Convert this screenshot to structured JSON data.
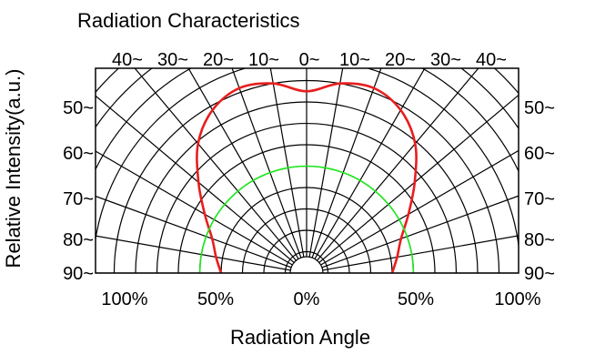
{
  "chart_data": {
    "type": "polar",
    "title": "Radiation Characteristics",
    "xlabel": "Radiation Angle",
    "ylabel": "Relative Intensity(a.u.)",
    "top_tick_labels": [
      "40~",
      "30~",
      "20~",
      "10~",
      "0~",
      "10~",
      "20~",
      "30~",
      "40~"
    ],
    "left_tick_labels": [
      "50~",
      "60~",
      "70~",
      "80~",
      "90~"
    ],
    "right_tick_labels": [
      "50~",
      "60~",
      "70~",
      "80~",
      "90~"
    ],
    "bottom_tick_labels": [
      "100%",
      "50%",
      "0%",
      "50%",
      "100%"
    ],
    "angle_step_deg": 10,
    "angle_range_deg": [
      -90,
      90
    ],
    "radial_range_percent": [
      0,
      100
    ],
    "radial_grid_step_percent": 10,
    "grid": true,
    "series": [
      {
        "color": "#e81e1e",
        "angles_deg": [
          -90,
          -80,
          -70,
          -60,
          -50,
          -40,
          -30,
          -20,
          -10,
          0,
          10,
          20,
          30,
          40,
          50,
          60,
          70,
          80,
          90
        ],
        "values_percent": [
          40,
          43,
          47,
          55,
          66,
          79,
          88,
          92,
          90,
          85,
          90,
          92,
          88,
          79,
          66,
          55,
          47,
          43,
          40
        ]
      },
      {
        "color": "#1ee81e",
        "angles_deg": [
          -90,
          -80,
          -70,
          -60,
          -50,
          -40,
          -30,
          -20,
          -10,
          0,
          10,
          20,
          30,
          40,
          50,
          60,
          70,
          80,
          90
        ],
        "values_percent": [
          50,
          50,
          50,
          50,
          50,
          50,
          50,
          50,
          50,
          50,
          50,
          50,
          50,
          50,
          50,
          50,
          50,
          50,
          50
        ]
      }
    ]
  }
}
